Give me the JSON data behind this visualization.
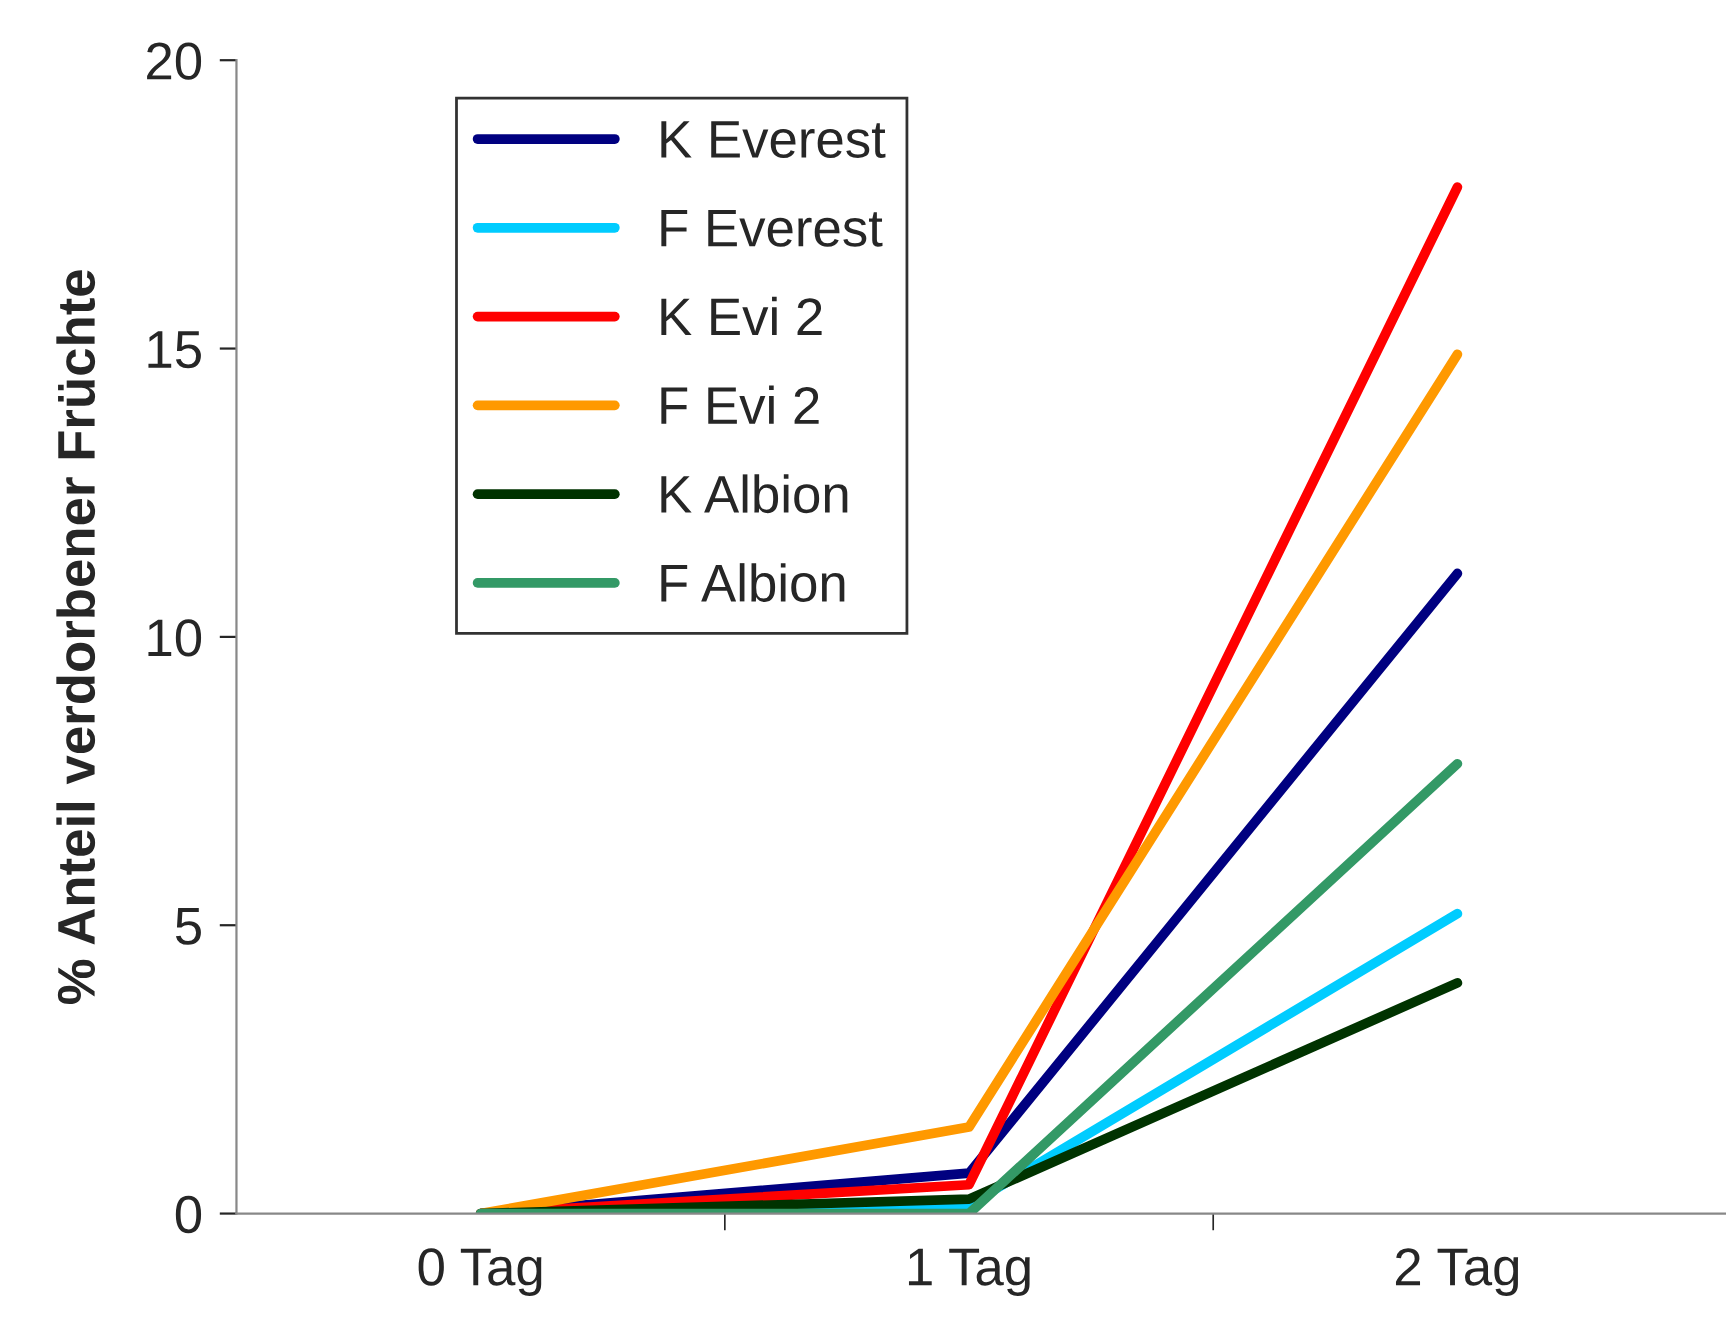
{
  "chart_data": {
    "type": "line",
    "ylabel": "% Anteil verdorbener Früchte",
    "categories": [
      "0 Tag",
      "1 Tag",
      "2 Tag"
    ],
    "series": [
      {
        "name": "K Everest",
        "color": "#000080",
        "values": [
          0,
          0.7,
          11.1
        ]
      },
      {
        "name": "F Everest",
        "color": "#00ccff",
        "values": [
          0,
          0.15,
          5.2
        ]
      },
      {
        "name": "K Evi 2",
        "color": "#ff0000",
        "values": [
          0,
          0.5,
          17.8
        ]
      },
      {
        "name": "F Evi 2",
        "color": "#ff9900",
        "values": [
          0,
          1.5,
          14.9
        ]
      },
      {
        "name": "K Albion",
        "color": "#003300",
        "values": [
          0,
          0.25,
          4.0
        ]
      },
      {
        "name": "F Albion",
        "color": "#339966",
        "values": [
          0,
          0,
          7.8
        ]
      }
    ],
    "ylim": [
      0,
      20
    ],
    "yticks": [
      0,
      5,
      10,
      15,
      20
    ],
    "grid": false,
    "legend": "top left",
    "marker": "none",
    "line_style": "solid"
  }
}
